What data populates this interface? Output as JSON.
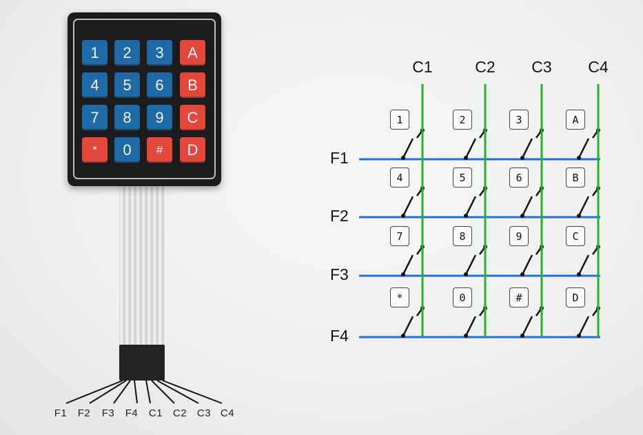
{
  "keypad": {
    "rows": [
      [
        {
          "label": "1",
          "kind": "num"
        },
        {
          "label": "2",
          "kind": "num"
        },
        {
          "label": "3",
          "kind": "num"
        },
        {
          "label": "A",
          "kind": "fn"
        }
      ],
      [
        {
          "label": "4",
          "kind": "num"
        },
        {
          "label": "5",
          "kind": "num"
        },
        {
          "label": "6",
          "kind": "num"
        },
        {
          "label": "B",
          "kind": "fn"
        }
      ],
      [
        {
          "label": "7",
          "kind": "num"
        },
        {
          "label": "8",
          "kind": "num"
        },
        {
          "label": "9",
          "kind": "num"
        },
        {
          "label": "C",
          "kind": "fn"
        }
      ],
      [
        {
          "label": "*",
          "kind": "fn"
        },
        {
          "label": "0",
          "kind": "num"
        },
        {
          "label": "#",
          "kind": "fn"
        },
        {
          "label": "D",
          "kind": "fn"
        }
      ]
    ]
  },
  "pins": [
    "F1",
    "F2",
    "F3",
    "F4",
    "C1",
    "C2",
    "C3",
    "C4"
  ],
  "matrix": {
    "columns": [
      "C1",
      "C2",
      "C3",
      "C4"
    ],
    "rows": [
      "F1",
      "F2",
      "F3",
      "F4"
    ],
    "keys": [
      [
        "1",
        "2",
        "3",
        "A"
      ],
      [
        "4",
        "5",
        "6",
        "B"
      ],
      [
        "7",
        "8",
        "9",
        "C"
      ],
      [
        "*",
        "0",
        "#",
        "D"
      ]
    ]
  },
  "colors": {
    "row_line": "#1f6fd6",
    "column_line": "#22b52a",
    "numeric_key": "#1f6aa6",
    "function_key": "#e2473b",
    "keypad_body": "#1c1c1e"
  }
}
